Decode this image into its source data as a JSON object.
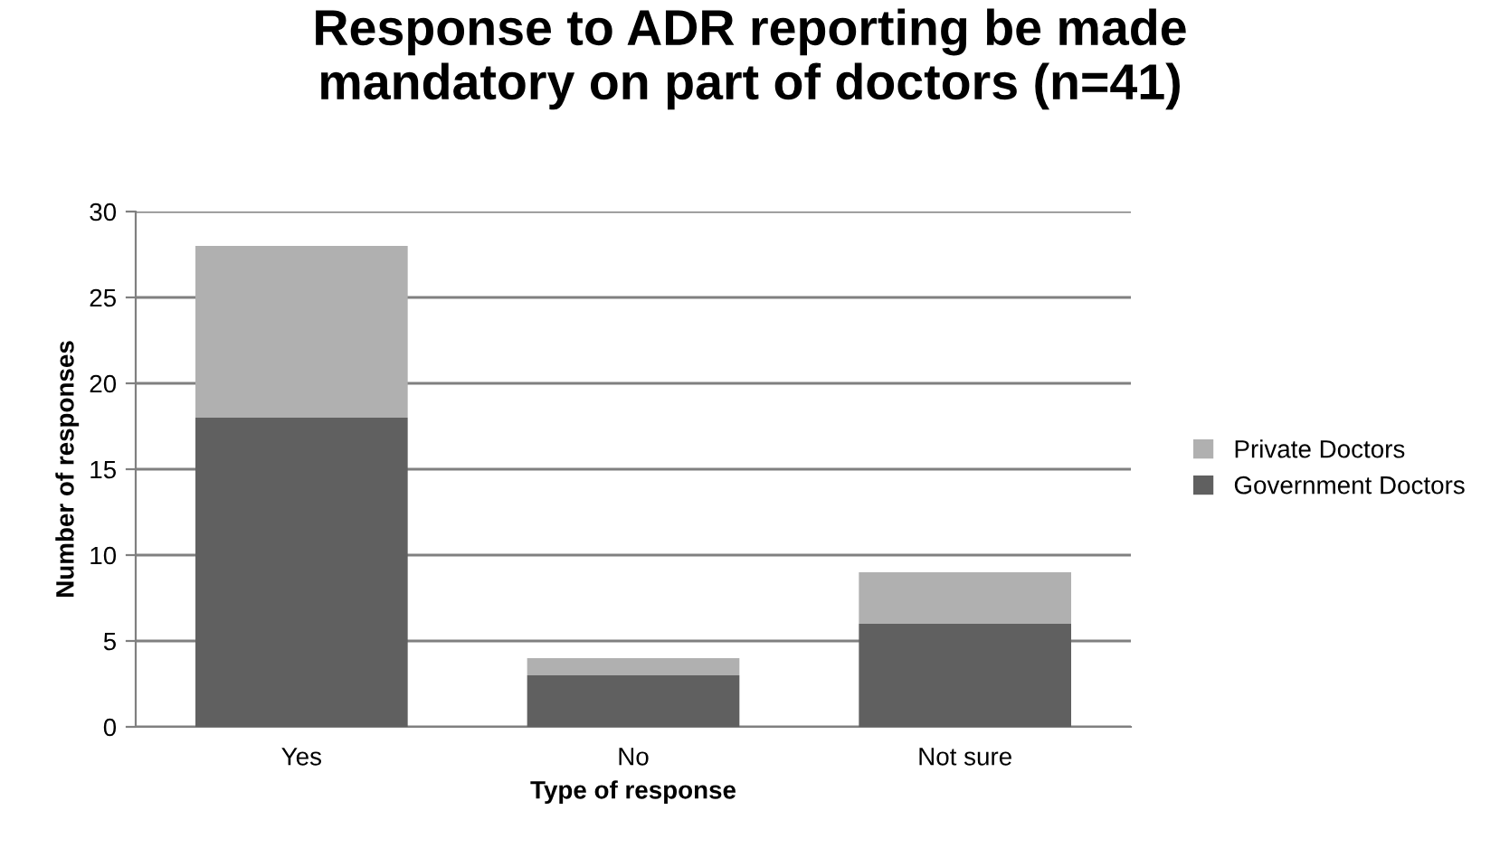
{
  "chart_data": {
    "type": "bar",
    "title": "Response to ADR reporting be made\nmandatory on part of doctors (n=41)",
    "xlabel": "Type of response",
    "ylabel": "Number of responses",
    "categories": [
      "Yes",
      "No",
      "Not sure"
    ],
    "series": [
      {
        "name": "Government Doctors",
        "color": "#606060",
        "values": [
          18,
          3,
          6
        ]
      },
      {
        "name": "Private Doctors",
        "color": "#b0b0b0",
        "values": [
          10,
          1,
          3
        ]
      }
    ],
    "stacked": true,
    "ylim": [
      0,
      30
    ],
    "yticks": [
      0,
      5,
      10,
      15,
      20,
      25,
      30
    ],
    "grid": "y",
    "legend": "right"
  }
}
